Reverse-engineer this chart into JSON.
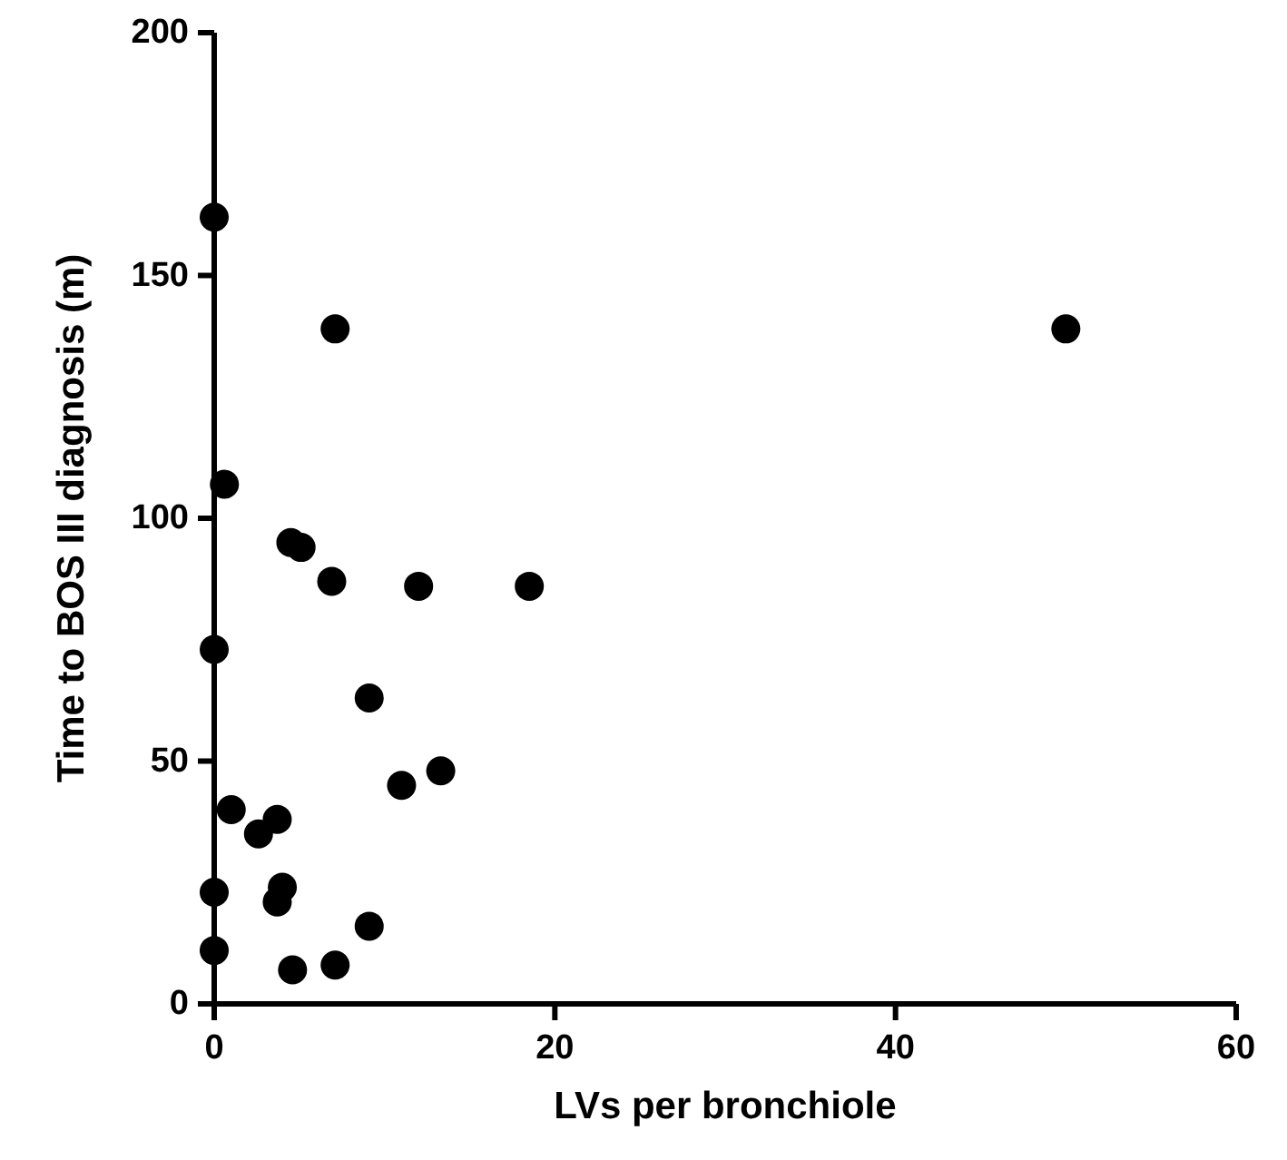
{
  "chart_data": {
    "type": "scatter",
    "xlabel": "LVs per bronchiole",
    "ylabel": "Time to BOS III diagnosis (m)",
    "x": [
      0,
      7.1,
      0.6,
      4.5,
      5.1,
      6.9,
      12,
      18.5,
      0,
      9.1,
      11,
      13.3,
      1,
      2.6,
      3.7,
      0,
      4,
      3.7,
      9.1,
      0,
      4.6,
      7.1,
      50
    ],
    "values": [
      162,
      139,
      107,
      95,
      94,
      87,
      86,
      86,
      73,
      63,
      45,
      48,
      40,
      35,
      38,
      23,
      24,
      21,
      16,
      11,
      7,
      8,
      139
    ],
    "color": "#000000",
    "marker": "circle",
    "xlim": [
      0,
      60
    ],
    "xticks": [
      0,
      20,
      40,
      60
    ],
    "ylim": [
      0,
      200
    ],
    "yticks": [
      0,
      50,
      100,
      150,
      200
    ],
    "grid": false
  }
}
